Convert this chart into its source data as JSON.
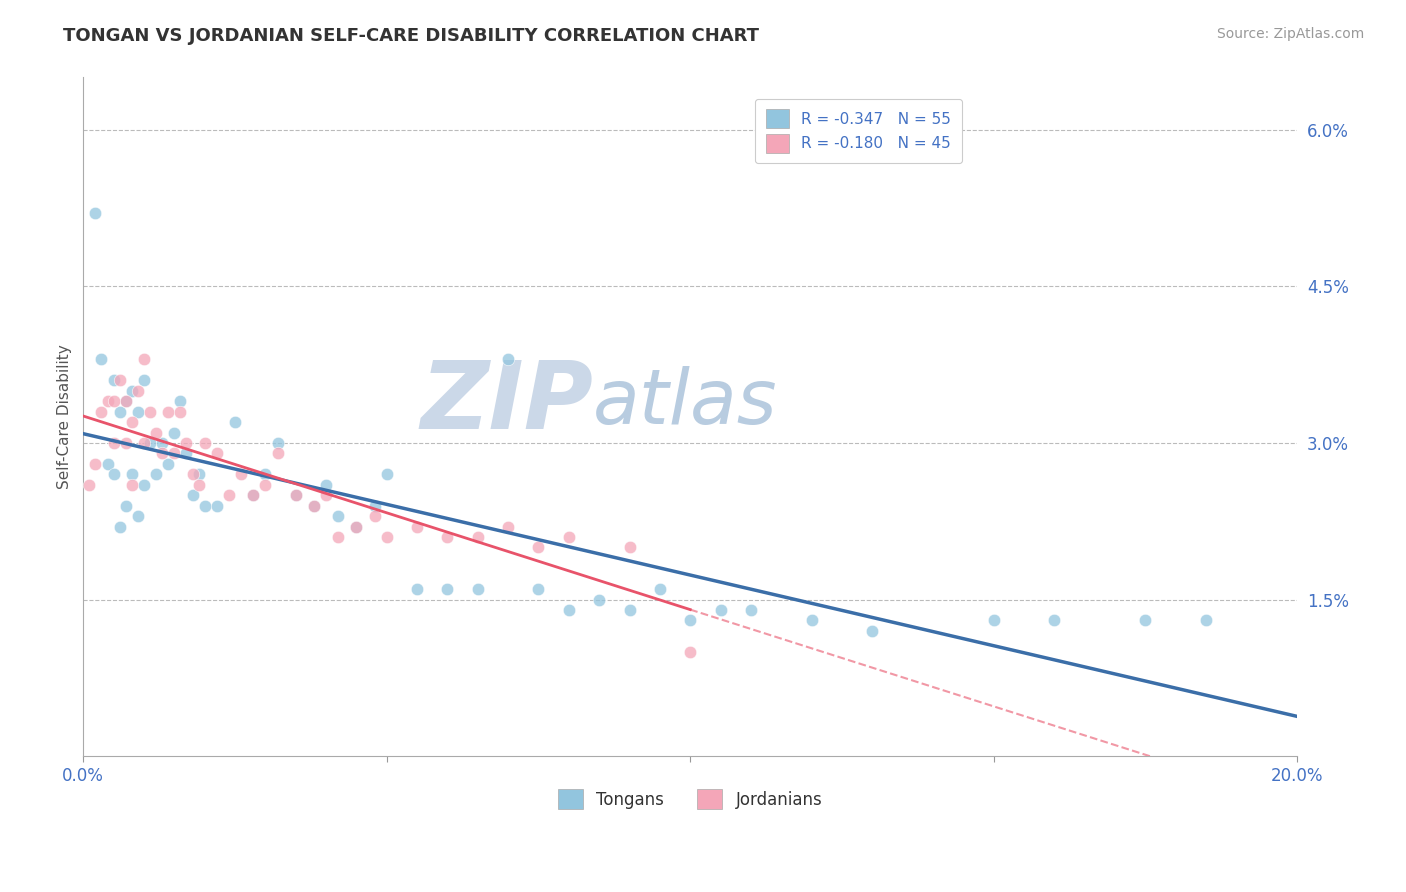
{
  "title": "TONGAN VS JORDANIAN SELF-CARE DISABILITY CORRELATION CHART",
  "source": "Source: ZipAtlas.com",
  "ylabel": "Self-Care Disability",
  "right_yticks": [
    "1.5%",
    "3.0%",
    "4.5%",
    "6.0%"
  ],
  "right_ytick_vals": [
    0.015,
    0.03,
    0.045,
    0.06
  ],
  "xmin": 0.0,
  "xmax": 0.2,
  "ymin": 0.0,
  "ymax": 0.065,
  "tongans_color": "#92C5DE",
  "jordanians_color": "#F4A6B8",
  "trendline_tongan_color": "#3B6EA8",
  "trendline_jordanian_color": "#E8536A",
  "legend_R_tongan": "R = -0.347",
  "legend_N_tongan": "N = 55",
  "legend_R_jordanian": "R = -0.180",
  "legend_N_jordanian": "N = 45",
  "tongans_x": [
    0.002,
    0.003,
    0.004,
    0.005,
    0.005,
    0.006,
    0.006,
    0.007,
    0.007,
    0.008,
    0.008,
    0.009,
    0.009,
    0.01,
    0.01,
    0.011,
    0.012,
    0.013,
    0.014,
    0.015,
    0.016,
    0.017,
    0.018,
    0.019,
    0.02,
    0.022,
    0.025,
    0.028,
    0.03,
    0.032,
    0.035,
    0.038,
    0.04,
    0.042,
    0.045,
    0.048,
    0.05,
    0.055,
    0.06,
    0.065,
    0.07,
    0.075,
    0.08,
    0.085,
    0.09,
    0.095,
    0.1,
    0.105,
    0.11,
    0.12,
    0.13,
    0.15,
    0.16,
    0.175,
    0.185
  ],
  "tongans_y": [
    0.052,
    0.038,
    0.028,
    0.036,
    0.027,
    0.033,
    0.022,
    0.034,
    0.024,
    0.035,
    0.027,
    0.033,
    0.023,
    0.036,
    0.026,
    0.03,
    0.027,
    0.03,
    0.028,
    0.031,
    0.034,
    0.029,
    0.025,
    0.027,
    0.024,
    0.024,
    0.032,
    0.025,
    0.027,
    0.03,
    0.025,
    0.024,
    0.026,
    0.023,
    0.022,
    0.024,
    0.027,
    0.016,
    0.016,
    0.016,
    0.038,
    0.016,
    0.014,
    0.015,
    0.014,
    0.016,
    0.013,
    0.014,
    0.014,
    0.013,
    0.012,
    0.013,
    0.013,
    0.013,
    0.013
  ],
  "jordanians_x": [
    0.001,
    0.002,
    0.003,
    0.004,
    0.005,
    0.005,
    0.006,
    0.007,
    0.007,
    0.008,
    0.008,
    0.009,
    0.01,
    0.01,
    0.011,
    0.012,
    0.013,
    0.014,
    0.015,
    0.016,
    0.017,
    0.018,
    0.019,
    0.02,
    0.022,
    0.024,
    0.026,
    0.028,
    0.03,
    0.032,
    0.035,
    0.038,
    0.04,
    0.042,
    0.045,
    0.048,
    0.05,
    0.055,
    0.06,
    0.065,
    0.07,
    0.075,
    0.08,
    0.09,
    0.1
  ],
  "jordanians_y": [
    0.026,
    0.028,
    0.033,
    0.034,
    0.03,
    0.034,
    0.036,
    0.034,
    0.03,
    0.032,
    0.026,
    0.035,
    0.038,
    0.03,
    0.033,
    0.031,
    0.029,
    0.033,
    0.029,
    0.033,
    0.03,
    0.027,
    0.026,
    0.03,
    0.029,
    0.025,
    0.027,
    0.025,
    0.026,
    0.029,
    0.025,
    0.024,
    0.025,
    0.021,
    0.022,
    0.023,
    0.021,
    0.022,
    0.021,
    0.021,
    0.022,
    0.02,
    0.021,
    0.02,
    0.01
  ],
  "watermark_ZIP": "ZIP",
  "watermark_atlas": "atlas",
  "background_color": "#FFFFFF",
  "grid_color": "#BBBBBB",
  "title_color": "#333333",
  "source_color": "#999999",
  "tick_color": "#4472C4",
  "legend_text_color": "#4472C4"
}
